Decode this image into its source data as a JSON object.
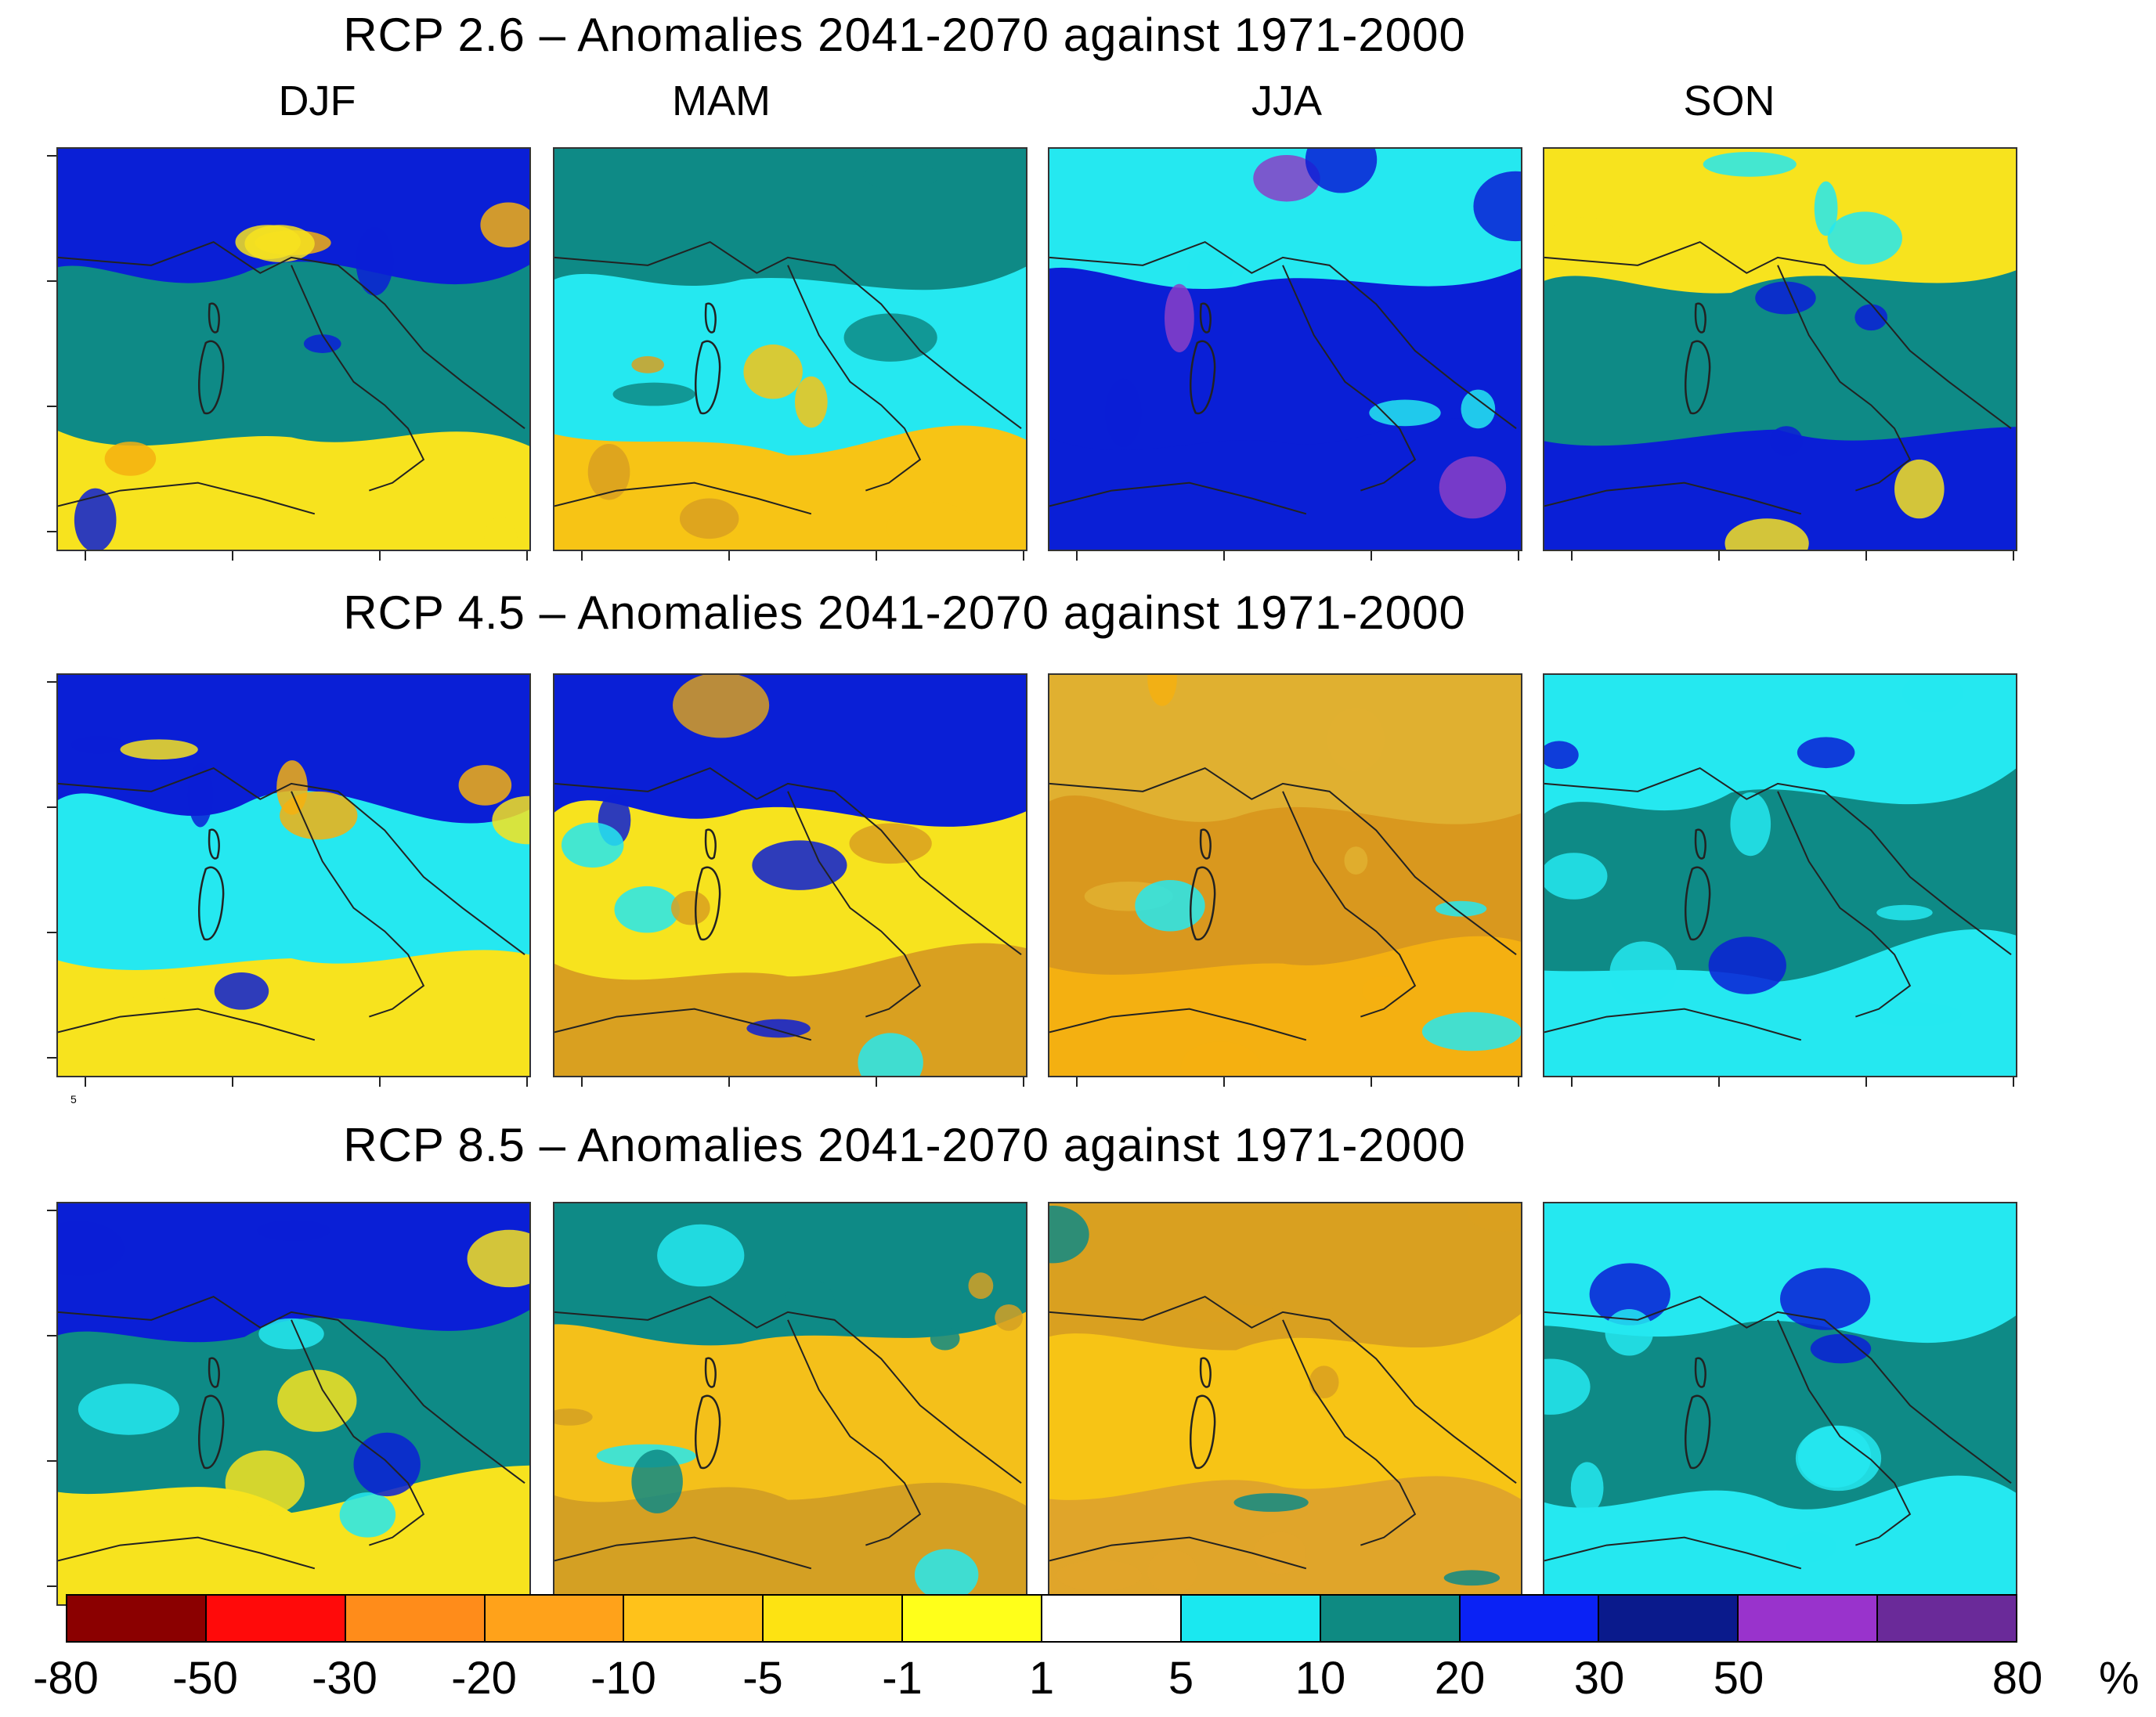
{
  "seasons": [
    "DJF",
    "MAM",
    "JJA",
    "SON"
  ],
  "rows": [
    {
      "title": "RCP 2.6 – Anomalies 2041-2070 against 1971-2000",
      "panels": [
        {
          "season": "DJF",
          "north": "#0a1fd6",
          "mid": "#0e8a86",
          "south": "#f7e31e",
          "accent": "#f4b011"
        },
        {
          "season": "MAM",
          "north": "#0e8a86",
          "mid": "#25e8f0",
          "south": "#f7c415",
          "accent": "#d9a020"
        },
        {
          "season": "JJA",
          "north": "#25e8f0",
          "mid": "#0a1fd6",
          "south": "#0a1fd6",
          "accent": "#8a3fc7"
        },
        {
          "season": "SON",
          "north": "#f7e31e",
          "mid": "#0e8a86",
          "south": "#0a1fd6",
          "accent": "#25e8f0"
        }
      ]
    },
    {
      "title": "RCP 4.5 – Anomalies 2041-2070 against 1971-2000",
      "panels": [
        {
          "season": "DJF",
          "north": "#0a1fd6",
          "mid": "#25e8f0",
          "south": "#f7e31e",
          "accent": "#f4b011"
        },
        {
          "season": "MAM",
          "north": "#0a1fd6",
          "mid": "#f7e31e",
          "south": "#d9a020",
          "accent": "#25e8f0"
        },
        {
          "season": "JJA",
          "north": "#e0b030",
          "mid": "#d9981e",
          "south": "#f4b011",
          "accent": "#25e8f0"
        },
        {
          "season": "SON",
          "north": "#25e8f0",
          "mid": "#0e8a86",
          "south": "#25e8f0",
          "accent": "#0a1fd6"
        }
      ]
    },
    {
      "title": "RCP 8.5 – Anomalies 2041-2070 against 1971-2000",
      "panels": [
        {
          "season": "DJF",
          "north": "#0a1fd6",
          "mid": "#0e8a86",
          "south": "#f7e31e",
          "accent": "#25e8f0"
        },
        {
          "season": "MAM",
          "north": "#0e8a86",
          "mid": "#f4c01a",
          "south": "#d4a023",
          "accent": "#25e8f0"
        },
        {
          "season": "JJA",
          "north": "#d9a020",
          "mid": "#f7c415",
          "south": "#e0a52a",
          "accent": "#0e8a86"
        },
        {
          "season": "SON",
          "north": "#25e8f0",
          "mid": "#0e8a86",
          "south": "#25e8f0",
          "accent": "#0a1fd6"
        }
      ]
    }
  ],
  "colorbar": {
    "colors": [
      "#8b0000",
      "#ff0a0a",
      "#ff8c1a",
      "#ffa21a",
      "#ffc21a",
      "#fde312",
      "#ffff1a",
      "#ffffff",
      "#1ae8f0",
      "#0e8a82",
      "#0a22f5",
      "#0a1a8c",
      "#9933cc",
      "#6a2a99"
    ],
    "labels": [
      "-80",
      "-50",
      "-30",
      "-20",
      "-10",
      "-5",
      "-1",
      "1",
      "5",
      "10",
      "20",
      "30",
      "50",
      "80"
    ],
    "unit": "%"
  },
  "stray_label": "5"
}
